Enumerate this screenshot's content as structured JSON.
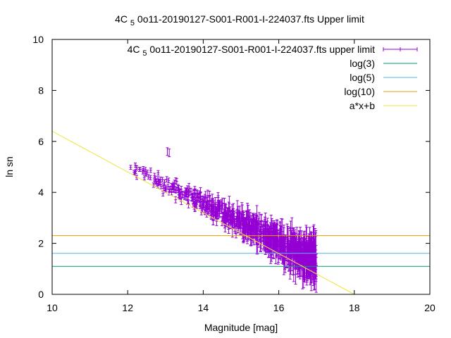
{
  "chart_data": {
    "type": "scatter",
    "title": "4C 5 0o11-20190127-S001-R001-I-224037.fts Upper limit",
    "xlabel": "Magnitude [mag]",
    "ylabel": "ln sn",
    "xlim": [
      10,
      20
    ],
    "ylim": [
      0,
      10
    ],
    "x_ticks": [
      "10",
      "12",
      "14",
      "16",
      "18",
      "20"
    ],
    "y_ticks": [
      "0",
      "2",
      "4",
      "6",
      "8",
      "10"
    ],
    "legend_placement": "top-right",
    "grid": false,
    "series": [
      {
        "name": "4C 5 0o11-20190127-S001-R001-I-224037.fts upper limit",
        "kind": "points-errorbars",
        "color": "#9400d3",
        "x_range": [
          12.05,
          17.0
        ],
        "y_at_xmin": 5.0,
        "y_at_xmax": 1.3
      },
      {
        "name": "log(3)",
        "kind": "hline",
        "value": 1.0986,
        "color": "#009e73"
      },
      {
        "name": "log(5)",
        "kind": "hline",
        "value": 1.6094,
        "color": "#56b4e9"
      },
      {
        "name": "log(10)",
        "kind": "hline",
        "value": 2.3026,
        "color": "#e69f00"
      },
      {
        "name": "a*x+b",
        "kind": "fit-line",
        "slope": -0.8,
        "intercept": 14.4,
        "color": "#f0e442"
      }
    ]
  }
}
